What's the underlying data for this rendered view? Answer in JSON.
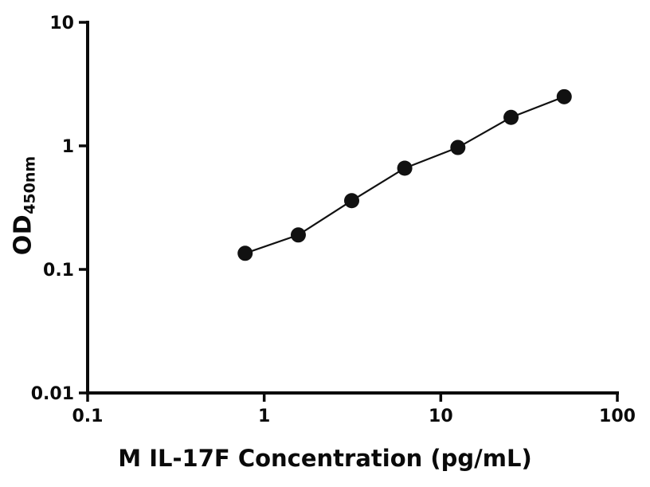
{
  "chart_data": {
    "type": "scatter",
    "title": "",
    "xlabel": "M IL-17F Concentration (pg/mL)",
    "ylabel_main": "OD",
    "ylabel_sub": "450nm",
    "xscale": "log",
    "yscale": "log",
    "xlim": [
      0.1,
      100
    ],
    "ylim": [
      0.01,
      10
    ],
    "x_ticks": [
      "0.1",
      "1",
      "10",
      "100"
    ],
    "y_ticks": [
      "0.01",
      "0.1",
      "1",
      "10"
    ],
    "x": [
      0.78,
      1.56,
      3.13,
      6.25,
      12.5,
      25,
      50
    ],
    "y": [
      0.135,
      0.19,
      0.36,
      0.66,
      0.97,
      1.7,
      2.5
    ],
    "marker_color": "#111111",
    "line_color": "#111111",
    "axis_color": "#0a0a0a",
    "grid": "off",
    "legend": "none"
  }
}
